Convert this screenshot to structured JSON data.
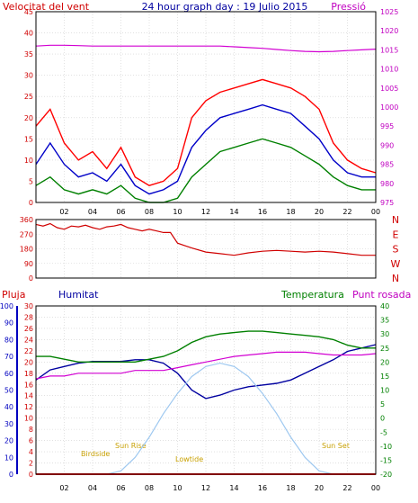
{
  "header": {
    "left_label": "Velocitat del vent",
    "title": "24 hour graph day : 19 Julio 2015",
    "right_label": "Pressió"
  },
  "lower_labels": {
    "rain": "Pluja",
    "humidity": "Humitat",
    "temperature": "Temperatura",
    "dewpoint": "Punt rosada"
  },
  "astro_labels": {
    "birdside": "Birdside",
    "sun_rise": "Sun Rise",
    "lowtide": "Lowtide",
    "sun_set": "Sun Set"
  },
  "colors": {
    "wind_gust": "#ff0000",
    "wind_avg": "#0000c8",
    "wind_min": "#008000",
    "pressure": "#d200d2",
    "direction": "#d00000",
    "humidity": "#0000a0",
    "temperature": "#008000",
    "dewpoint": "#d200d2",
    "solar": "#9ec8f0",
    "rain": "#ff0000",
    "left_axis": "#d00000",
    "right_axis": "#c000c0",
    "humidity_axis": "#0000c0",
    "temp_axis": "#008000"
  },
  "x_ticks": [
    "02",
    "04",
    "06",
    "08",
    "10",
    "12",
    "14",
    "16",
    "18",
    "20",
    "22",
    "00"
  ],
  "chart_data": [
    {
      "type": "line",
      "name": "wind-and-pressure",
      "x": [
        0,
        1,
        2,
        3,
        4,
        5,
        6,
        7,
        8,
        9,
        10,
        11,
        12,
        13,
        14,
        15,
        16,
        17,
        18,
        19,
        20,
        21,
        22,
        23,
        24
      ],
      "series": [
        {
          "name": "gust",
          "values": [
            18,
            22,
            14,
            10,
            12,
            8,
            13,
            6,
            4,
            5,
            8,
            20,
            24,
            26,
            27,
            28,
            29,
            28,
            27,
            25,
            22,
            14,
            10,
            8,
            7
          ]
        },
        {
          "name": "average",
          "values": [
            9,
            14,
            9,
            6,
            7,
            5,
            9,
            4,
            2,
            3,
            5,
            13,
            17,
            20,
            21,
            22,
            23,
            22,
            21,
            18,
            15,
            10,
            7,
            6,
            6
          ]
        },
        {
          "name": "minimum",
          "values": [
            4,
            6,
            3,
            2,
            3,
            2,
            4,
            1,
            0,
            0,
            1,
            6,
            9,
            12,
            13,
            14,
            15,
            14,
            13,
            11,
            9,
            6,
            4,
            3,
            3
          ]
        },
        {
          "name": "pressure",
          "values": [
            1016,
            1016.2,
            1016.2,
            1016.1,
            1016,
            1016,
            1016,
            1016,
            1016,
            1016,
            1016,
            1016,
            1016,
            1016,
            1015.8,
            1015.6,
            1015.4,
            1015.1,
            1014.8,
            1014.6,
            1014.5,
            1014.6,
            1014.8,
            1015,
            1015.2
          ]
        }
      ],
      "ylim_left": [
        0,
        45
      ],
      "yticks_left": [
        0,
        5,
        10,
        15,
        20,
        25,
        30,
        35,
        40,
        45
      ],
      "ylim_right": [
        975,
        1025
      ],
      "yticks_right": [
        975,
        980,
        985,
        990,
        995,
        1000,
        1005,
        1010,
        1015,
        1020,
        1025
      ],
      "grid": true
    },
    {
      "type": "line",
      "name": "wind-direction",
      "x": [
        0,
        0.5,
        1,
        1.5,
        2,
        2.5,
        3,
        3.5,
        4,
        4.5,
        5,
        5.5,
        6,
        6.5,
        7,
        7.5,
        8,
        8.5,
        9,
        9.5,
        10,
        10.5,
        11,
        12,
        13,
        14,
        15,
        16,
        17,
        18,
        19,
        20,
        21,
        22,
        23,
        24
      ],
      "values": [
        330,
        320,
        335,
        310,
        300,
        320,
        315,
        325,
        310,
        300,
        315,
        320,
        330,
        310,
        300,
        290,
        300,
        290,
        280,
        280,
        215,
        200,
        185,
        160,
        150,
        140,
        155,
        165,
        170,
        165,
        160,
        165,
        160,
        150,
        140,
        140
      ],
      "ylim": [
        0,
        360
      ],
      "yticks": [
        0,
        90,
        180,
        270,
        360
      ],
      "compass": [
        "N",
        "W",
        "S",
        "E",
        "N"
      ],
      "grid": true
    },
    {
      "type": "line",
      "name": "humidity-temperature-dewpoint",
      "x": [
        0,
        1,
        2,
        3,
        4,
        5,
        6,
        7,
        8,
        9,
        10,
        11,
        12,
        13,
        14,
        15,
        16,
        17,
        18,
        19,
        20,
        21,
        22,
        23,
        24
      ],
      "series": [
        {
          "name": "humidity",
          "values": [
            56,
            62,
            64,
            66,
            67,
            67,
            67,
            68,
            68,
            66,
            60,
            50,
            45,
            47,
            50,
            52,
            53,
            54,
            56,
            60,
            64,
            68,
            73,
            75,
            77
          ]
        },
        {
          "name": "temperature",
          "values": [
            22,
            22,
            21,
            20,
            20,
            20,
            20,
            20,
            21,
            22,
            24,
            27,
            29,
            30,
            30.5,
            31,
            31,
            30.5,
            30,
            29.5,
            29,
            28,
            26,
            25,
            25
          ]
        },
        {
          "name": "dewpoint",
          "values": [
            14,
            15,
            15,
            16,
            16,
            16,
            16,
            17,
            17,
            17,
            18,
            19,
            20,
            21,
            22,
            22.5,
            23,
            23.5,
            23.5,
            23.5,
            23,
            22.5,
            22.5,
            22.5,
            23
          ]
        },
        {
          "name": "solar",
          "values": [
            0,
            0,
            0,
            0,
            0,
            0,
            2,
            10,
            22,
            36,
            48,
            58,
            64,
            66,
            64,
            58,
            48,
            36,
            22,
            10,
            2,
            0,
            0,
            0,
            0
          ]
        },
        {
          "name": "rain",
          "values": [
            0,
            0,
            0,
            0,
            0,
            0,
            0,
            0,
            0,
            0,
            0,
            0,
            0,
            0,
            0,
            0,
            0,
            0,
            0,
            0,
            0,
            0,
            0,
            0,
            0
          ]
        }
      ],
      "ylim_humidity": [
        0,
        100
      ],
      "yticks_humidity": [
        0,
        10,
        20,
        30,
        40,
        50,
        60,
        70,
        80,
        90,
        100
      ],
      "ylim_rain": [
        0,
        30
      ],
      "yticks_rain": [
        0,
        2,
        4,
        6,
        8,
        10,
        12,
        14,
        16,
        18,
        20,
        22,
        24,
        26,
        28,
        30
      ],
      "ylim_temperature": [
        -20,
        40
      ],
      "yticks_temperature": [
        -20,
        -15,
        -10,
        -5,
        0,
        5,
        10,
        15,
        20,
        25,
        30,
        35,
        40
      ],
      "grid": true
    }
  ]
}
